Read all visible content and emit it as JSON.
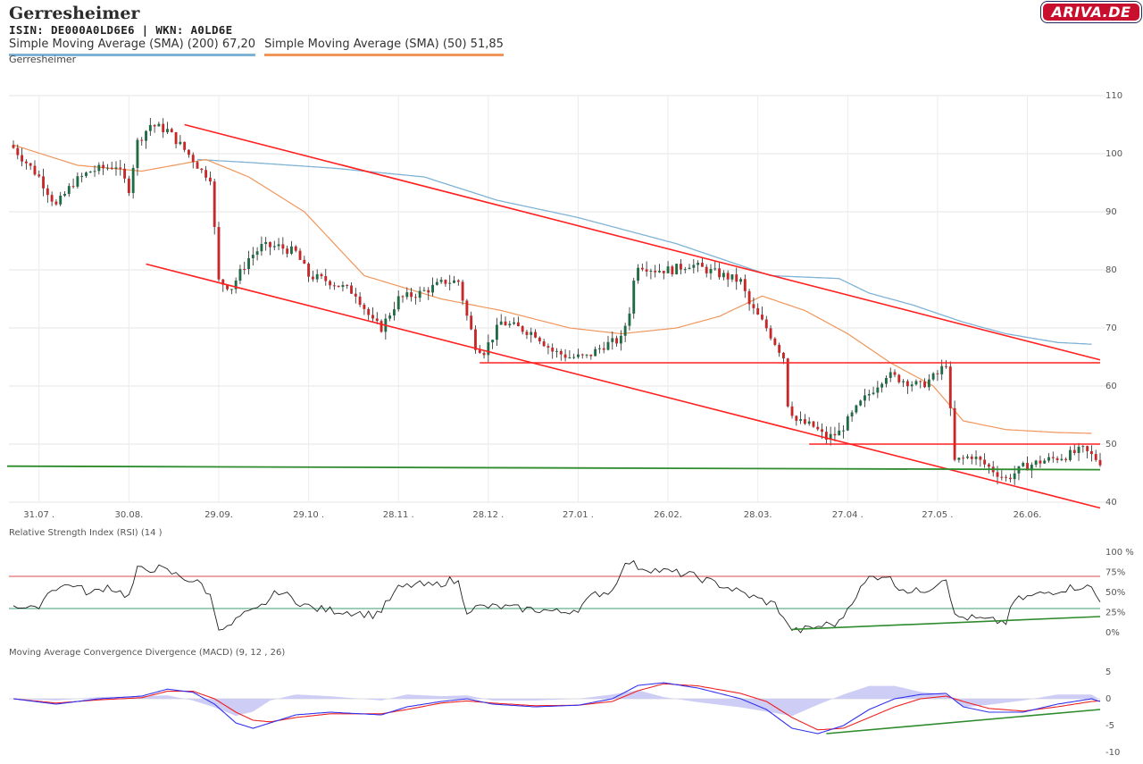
{
  "header": {
    "title": "Gerresheimer",
    "isin_line": "ISIN: DE000A0LD6E6  | WKN: A0LD6E",
    "sma200_label": "Simple Moving Average (SMA) (200) 67,20",
    "sma50_label": "Simple Moving Average (SMA) (50) 51,85",
    "subtitle": "Gerresheimer",
    "logo": "ARIVA.DE"
  },
  "colors": {
    "up": "#1f6b45",
    "down": "#c62828",
    "sma200": "#7fb3d5",
    "sma50": "#f0965a",
    "trend_red": "#ff2020",
    "support_green": "#2e8b2e",
    "rsi_line": "#222222",
    "macd_line": "#3333ee",
    "signal_line": "#ee2222",
    "histogram": "#c8c8f5",
    "rsi_upper": "#e07070",
    "rsi_lower": "#60b090"
  },
  "chart_data": [
    {
      "type": "candlestick",
      "name": "price",
      "ylim": [
        40,
        110
      ],
      "y_ticks": [
        40,
        50,
        60,
        70,
        80,
        90,
        100,
        110
      ],
      "x_tick_labels": [
        "31.07 .",
        "30.08.",
        "29.09.",
        "29.10 .",
        "28.11 .",
        "28.12 .",
        "27.01 .",
        "26.02.",
        "28.03.",
        "27.04 .",
        "27.05 .",
        "26.06."
      ],
      "x_tick_positions": [
        6,
        27,
        48,
        69,
        90,
        111,
        132,
        153,
        174,
        195,
        216,
        237
      ],
      "days": 255,
      "close_keypoints": [
        [
          0,
          101
        ],
        [
          6,
          96
        ],
        [
          10,
          91
        ],
        [
          14,
          95
        ],
        [
          18,
          97
        ],
        [
          24,
          98
        ],
        [
          27,
          94
        ],
        [
          29,
          102
        ],
        [
          32,
          105
        ],
        [
          36,
          104
        ],
        [
          42,
          99
        ],
        [
          44,
          97
        ],
        [
          46,
          96
        ],
        [
          48,
          78
        ],
        [
          51,
          77
        ],
        [
          55,
          82
        ],
        [
          58,
          84
        ],
        [
          62,
          84
        ],
        [
          66,
          83
        ],
        [
          69,
          79
        ],
        [
          74,
          78
        ],
        [
          80,
          76
        ],
        [
          84,
          71
        ],
        [
          86,
          70
        ],
        [
          90,
          75
        ],
        [
          95,
          76
        ],
        [
          101,
          78
        ],
        [
          104,
          78
        ],
        [
          106,
          72
        ],
        [
          108,
          67
        ],
        [
          110,
          66
        ],
        [
          114,
          71
        ],
        [
          118,
          70
        ],
        [
          122,
          69
        ],
        [
          126,
          66
        ],
        [
          130,
          65
        ],
        [
          134,
          65
        ],
        [
          138,
          67
        ],
        [
          142,
          68
        ],
        [
          144,
          73
        ],
        [
          145,
          78
        ],
        [
          146,
          81
        ],
        [
          150,
          80
        ],
        [
          154,
          80
        ],
        [
          158,
          81
        ],
        [
          162,
          80
        ],
        [
          166,
          79
        ],
        [
          170,
          78
        ],
        [
          172,
          74
        ],
        [
          176,
          70
        ],
        [
          180,
          65
        ],
        [
          181,
          57
        ],
        [
          183,
          54
        ],
        [
          187,
          53
        ],
        [
          190,
          51
        ],
        [
          193,
          52
        ],
        [
          198,
          57
        ],
        [
          204,
          62
        ],
        [
          208,
          61
        ],
        [
          212,
          60
        ],
        [
          216,
          62
        ],
        [
          218,
          64
        ],
        [
          220,
          47
        ],
        [
          224,
          48
        ],
        [
          228,
          46
        ],
        [
          232,
          44
        ],
        [
          236,
          46
        ],
        [
          240,
          47
        ],
        [
          246,
          48
        ],
        [
          250,
          49
        ],
        [
          252,
          48
        ],
        [
          254,
          47
        ]
      ],
      "sma200_keypoints": [
        [
          43,
          99
        ],
        [
          55,
          98.5
        ],
        [
          75,
          97.5
        ],
        [
          96,
          96
        ],
        [
          113,
          92
        ],
        [
          132,
          89
        ],
        [
          155,
          84.5
        ],
        [
          177,
          79
        ],
        [
          193,
          78.5
        ],
        [
          200,
          76
        ],
        [
          210,
          74
        ],
        [
          222,
          71
        ],
        [
          232,
          69
        ],
        [
          244,
          67.5
        ],
        [
          252,
          67.2
        ]
      ],
      "sma50_keypoints": [
        [
          0,
          101.5
        ],
        [
          15,
          98
        ],
        [
          30,
          97
        ],
        [
          45,
          99
        ],
        [
          55,
          96
        ],
        [
          68,
          90
        ],
        [
          82,
          79
        ],
        [
          100,
          75
        ],
        [
          114,
          73
        ],
        [
          130,
          70
        ],
        [
          142,
          69
        ],
        [
          155,
          70
        ],
        [
          165,
          72
        ],
        [
          175,
          75.5
        ],
        [
          185,
          73
        ],
        [
          195,
          69
        ],
        [
          205,
          64
        ],
        [
          215,
          60
        ],
        [
          222,
          54
        ],
        [
          232,
          52.5
        ],
        [
          244,
          52
        ],
        [
          252,
          51.85
        ]
      ],
      "upper_channel": [
        [
          40,
          105
        ],
        [
          254,
          64.5
        ]
      ],
      "lower_channel": [
        [
          31,
          81
        ],
        [
          254,
          39
        ]
      ],
      "horizontal_lines": [
        {
          "from": 109,
          "to": 254,
          "y": 64,
          "color": "red"
        },
        {
          "from": 186,
          "to": 254,
          "y": 50,
          "color": "red"
        }
      ],
      "support_line": {
        "from": 0,
        "to": 254,
        "y1": 46.2,
        "y2": 45.6
      }
    },
    {
      "type": "line",
      "name": "rsi",
      "title": "Relative Strength Index (RSI) (14 )",
      "ylim": [
        0,
        100
      ],
      "y_tick_labels": [
        "100 %",
        "75%",
        "50%",
        "25%",
        "0%"
      ],
      "y_tick_values": [
        100,
        75,
        50,
        25,
        0
      ],
      "upper_level": 70,
      "lower_level": 30,
      "keypoints": [
        [
          0,
          35
        ],
        [
          5,
          28
        ],
        [
          9,
          55
        ],
        [
          14,
          60
        ],
        [
          18,
          48
        ],
        [
          22,
          58
        ],
        [
          27,
          45
        ],
        [
          29,
          78
        ],
        [
          34,
          80
        ],
        [
          38,
          72
        ],
        [
          44,
          60
        ],
        [
          46,
          45
        ],
        [
          48,
          8
        ],
        [
          50,
          5
        ],
        [
          53,
          20
        ],
        [
          57,
          28
        ],
        [
          62,
          52
        ],
        [
          66,
          40
        ],
        [
          70,
          30
        ],
        [
          74,
          28
        ],
        [
          80,
          25
        ],
        [
          84,
          22
        ],
        [
          86,
          28
        ],
        [
          90,
          55
        ],
        [
          94,
          60
        ],
        [
          98,
          58
        ],
        [
          102,
          65
        ],
        [
          104,
          62
        ],
        [
          106,
          28
        ],
        [
          109,
          32
        ],
        [
          114,
          32
        ],
        [
          118,
          30
        ],
        [
          124,
          28
        ],
        [
          128,
          25
        ],
        [
          132,
          30
        ],
        [
          136,
          48
        ],
        [
          140,
          52
        ],
        [
          142,
          78
        ],
        [
          144,
          88
        ],
        [
          146,
          82
        ],
        [
          150,
          78
        ],
        [
          158,
          72
        ],
        [
          166,
          58
        ],
        [
          170,
          50
        ],
        [
          174,
          42
        ],
        [
          178,
          35
        ],
        [
          180,
          20
        ],
        [
          181,
          8
        ],
        [
          183,
          2
        ],
        [
          186,
          5
        ],
        [
          190,
          10
        ],
        [
          193,
          12
        ],
        [
          196,
          40
        ],
        [
          200,
          68
        ],
        [
          204,
          72
        ],
        [
          206,
          60
        ],
        [
          210,
          50
        ],
        [
          214,
          55
        ],
        [
          218,
          70
        ],
        [
          220,
          20
        ],
        [
          224,
          18
        ],
        [
          228,
          15
        ],
        [
          232,
          13
        ],
        [
          234,
          40
        ],
        [
          240,
          48
        ],
        [
          246,
          55
        ],
        [
          250,
          58
        ],
        [
          252,
          55
        ],
        [
          254,
          38
        ]
      ],
      "divergence_line": [
        [
          182,
          4
        ],
        [
          254,
          20
        ]
      ]
    },
    {
      "type": "line",
      "name": "macd",
      "title": "Moving Average Convergence Divergence (MACD) (9, 12 , 26)",
      "ylim": [
        -10,
        5
      ],
      "y_tick_values": [
        5,
        0,
        -5,
        -10
      ],
      "y_tick_labels": [
        "5",
        "0",
        "-5",
        "-10"
      ],
      "macd_keypoints": [
        [
          0,
          0
        ],
        [
          10,
          -1
        ],
        [
          20,
          0
        ],
        [
          30,
          0.5
        ],
        [
          36,
          1.8
        ],
        [
          42,
          1.2
        ],
        [
          47,
          -1
        ],
        [
          52,
          -4.5
        ],
        [
          56,
          -5.5
        ],
        [
          60,
          -4.5
        ],
        [
          66,
          -3
        ],
        [
          74,
          -2.5
        ],
        [
          86,
          -3
        ],
        [
          92,
          -1.5
        ],
        [
          100,
          -0.5
        ],
        [
          106,
          0
        ],
        [
          112,
          -1
        ],
        [
          122,
          -1.5
        ],
        [
          132,
          -1.2
        ],
        [
          140,
          0
        ],
        [
          146,
          2.5
        ],
        [
          152,
          3
        ],
        [
          160,
          2
        ],
        [
          170,
          0
        ],
        [
          176,
          -2
        ],
        [
          182,
          -5.5
        ],
        [
          188,
          -6.5
        ],
        [
          194,
          -5
        ],
        [
          200,
          -2
        ],
        [
          206,
          0
        ],
        [
          212,
          0.8
        ],
        [
          218,
          1
        ],
        [
          222,
          -1.5
        ],
        [
          228,
          -2.5
        ],
        [
          236,
          -2.5
        ],
        [
          244,
          -1
        ],
        [
          252,
          0
        ],
        [
          254,
          -0.5
        ]
      ],
      "signal_keypoints": [
        [
          0,
          0
        ],
        [
          10,
          -0.8
        ],
        [
          20,
          -0.2
        ],
        [
          30,
          0.2
        ],
        [
          36,
          1.4
        ],
        [
          42,
          1.4
        ],
        [
          47,
          0
        ],
        [
          52,
          -2.5
        ],
        [
          56,
          -4
        ],
        [
          60,
          -4.3
        ],
        [
          66,
          -3.5
        ],
        [
          74,
          -2.8
        ],
        [
          86,
          -2.8
        ],
        [
          92,
          -2
        ],
        [
          100,
          -0.8
        ],
        [
          106,
          -0.4
        ],
        [
          112,
          -0.8
        ],
        [
          122,
          -1.3
        ],
        [
          132,
          -1.2
        ],
        [
          140,
          -0.5
        ],
        [
          146,
          1.5
        ],
        [
          152,
          2.8
        ],
        [
          160,
          2.4
        ],
        [
          170,
          1
        ],
        [
          176,
          -0.5
        ],
        [
          182,
          -3.5
        ],
        [
          188,
          -5.8
        ],
        [
          194,
          -5.5
        ],
        [
          200,
          -3.5
        ],
        [
          206,
          -1.5
        ],
        [
          212,
          0
        ],
        [
          218,
          0.5
        ],
        [
          222,
          -0.5
        ],
        [
          228,
          -1.8
        ],
        [
          236,
          -2.3
        ],
        [
          244,
          -1.5
        ],
        [
          252,
          -0.5
        ],
        [
          254,
          -0.4
        ]
      ],
      "divergence_line": [
        [
          190,
          -6.5
        ],
        [
          254,
          -2
        ]
      ]
    }
  ]
}
